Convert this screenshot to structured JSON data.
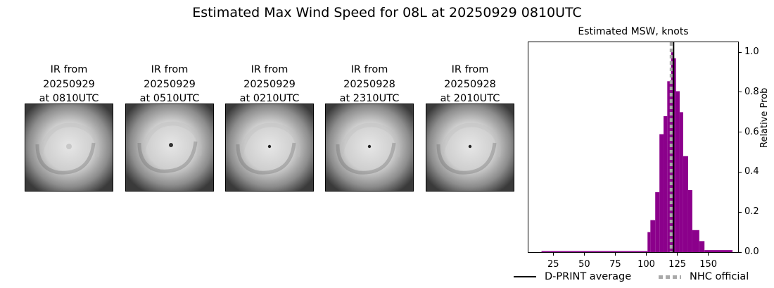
{
  "figure": {
    "title": "Estimated Max Wind Speed for 08L at 20250929 0810UTC"
  },
  "satellite_panels": [
    {
      "line1": "IR from",
      "line2": "20250929",
      "line3": "at 0810UTC"
    },
    {
      "line1": "IR from",
      "line2": "20250929",
      "line3": "at 0510UTC"
    },
    {
      "line1": "IR from",
      "line2": "20250929",
      "line3": "at 0210UTC"
    },
    {
      "line1": "IR from",
      "line2": "20250928",
      "line3": "at 2310UTC"
    },
    {
      "line1": "IR from",
      "line2": "20250928",
      "line3": "at 2010UTC"
    }
  ],
  "colors": {
    "bar": "#8b008b",
    "dprint_line": "#000000",
    "nhc_line": "#a9a9a9"
  },
  "chart_data": {
    "type": "bar",
    "title": "Estimated MSW, knots",
    "xlabel": "",
    "ylabel": "Relative Prob",
    "xlim": [
      5,
      174
    ],
    "ylim": [
      0,
      1.05
    ],
    "xticks": [
      25,
      50,
      75,
      100,
      125,
      150
    ],
    "xtick_labels": [
      "25",
      "50",
      "75",
      "100",
      "125",
      "150"
    ],
    "yticks": [
      0.0,
      0.2,
      0.4,
      0.6,
      0.8,
      1.0
    ],
    "ytick_labels": [
      "0.0",
      "0.2",
      "0.4",
      "0.6",
      "0.8",
      "1.0"
    ],
    "y_axis_side": "right",
    "grid": false,
    "bins": [
      {
        "x0": 15.5,
        "x1": 101,
        "value": 0.005
      },
      {
        "x0": 101,
        "x1": 103.3,
        "value": 0.1
      },
      {
        "x0": 103.3,
        "x1": 107.2,
        "value": 0.16
      },
      {
        "x0": 107.2,
        "x1": 110.6,
        "value": 0.3
      },
      {
        "x0": 110.6,
        "x1": 113.9,
        "value": 0.59
      },
      {
        "x0": 113.9,
        "x1": 116.9,
        "value": 0.68
      },
      {
        "x0": 116.9,
        "x1": 120.0,
        "value": 0.855
      },
      {
        "x0": 120.0,
        "x1": 122.0,
        "value": 1.0
      },
      {
        "x0": 122.0,
        "x1": 123.9,
        "value": 0.97
      },
      {
        "x0": 123.9,
        "x1": 126.9,
        "value": 0.805
      },
      {
        "x0": 126.9,
        "x1": 129.7,
        "value": 0.7
      },
      {
        "x0": 129.7,
        "x1": 133.7,
        "value": 0.48
      },
      {
        "x0": 133.7,
        "x1": 137.1,
        "value": 0.31
      },
      {
        "x0": 137.1,
        "x1": 142.7,
        "value": 0.11
      },
      {
        "x0": 142.7,
        "x1": 146.9,
        "value": 0.055
      },
      {
        "x0": 146.9,
        "x1": 169.5,
        "value": 0.01
      }
    ],
    "vlines": [
      {
        "name": "D-PRINT average",
        "x": 122,
        "style": "solid",
        "color": "#000000"
      },
      {
        "name": "NHC official",
        "x": 120,
        "style": "dotted",
        "color": "#a9a9a9"
      }
    ],
    "legend": {
      "position": "bottom",
      "entries": [
        "D-PRINT average",
        "NHC official"
      ]
    }
  }
}
